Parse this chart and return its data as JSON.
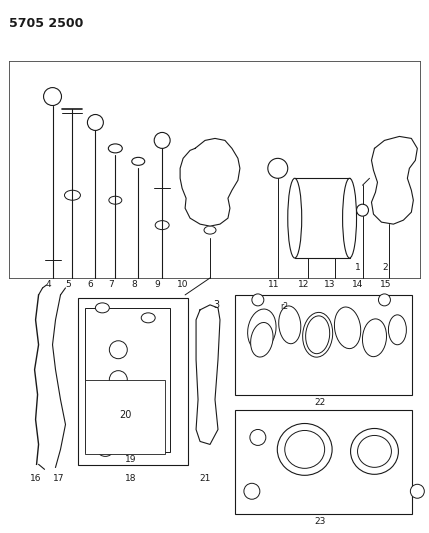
{
  "title": "5705 2500",
  "bg_color": "#ffffff",
  "line_color": "#1a1a1a",
  "fig_width": 4.29,
  "fig_height": 5.33,
  "dpi": 100
}
